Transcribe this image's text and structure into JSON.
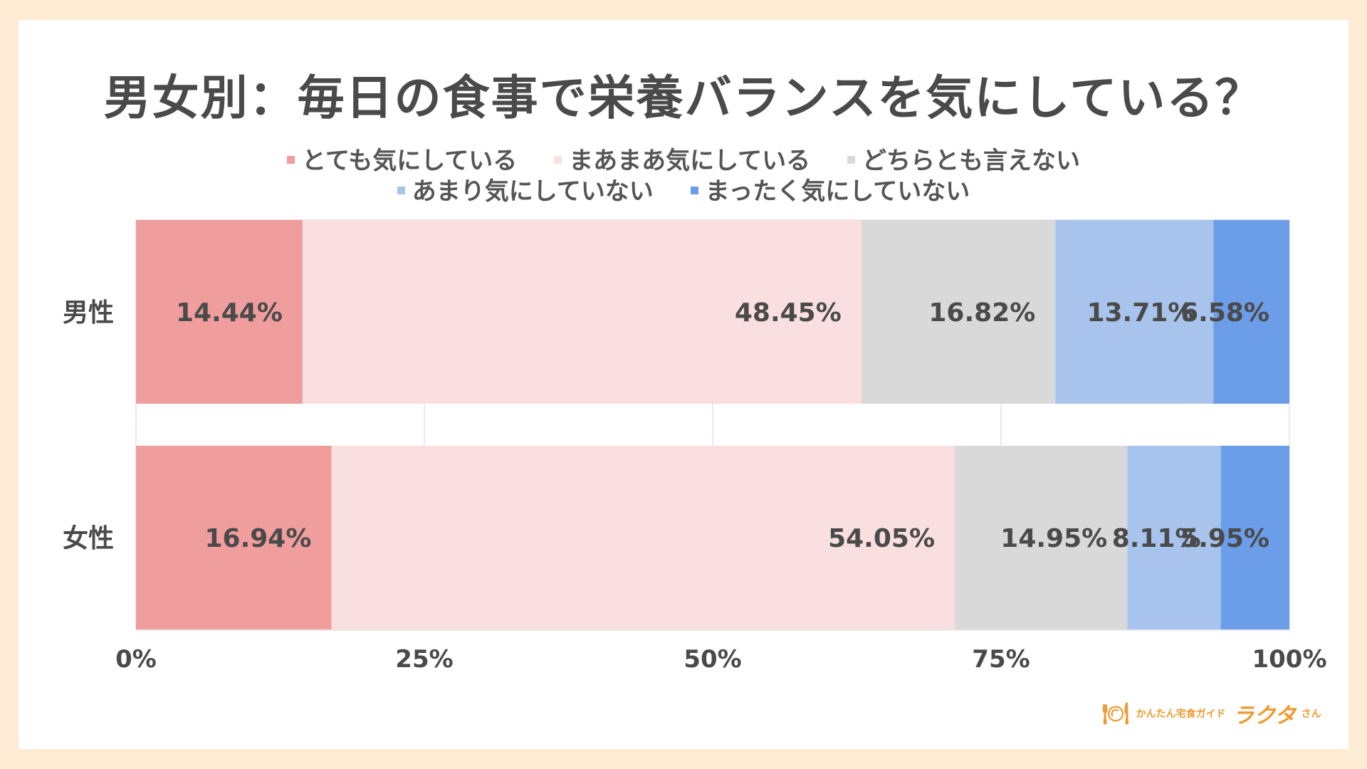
{
  "chart_data": {
    "type": "bar",
    "orientation": "horizontal",
    "stacked": true,
    "title": "男女別：毎日の食事で栄養バランスを気にしている？",
    "categories": [
      "男性",
      "女性"
    ],
    "series": [
      {
        "name": "とても気にしている",
        "color": "#f09d9d",
        "values": [
          14.44,
          16.94
        ],
        "labels": [
          "14.44%",
          "16.94%"
        ]
      },
      {
        "name": "まあまあ気にしている",
        "color": "#fadfe0",
        "values": [
          48.45,
          54.05
        ],
        "labels": [
          "48.45%",
          "54.05%"
        ]
      },
      {
        "name": "どちらとも言えない",
        "color": "#d9d9d9",
        "values": [
          16.82,
          14.95
        ],
        "labels": [
          "16.82%",
          "14.95%"
        ]
      },
      {
        "name": "あまり気にしていない",
        "color": "#a8c3ec",
        "values": [
          13.71,
          8.11
        ],
        "labels": [
          "13.71%",
          "8.11%"
        ]
      },
      {
        "name": "まったく気にしていない",
        "color": "#6b9de8",
        "values": [
          6.58,
          5.95
        ],
        "labels": [
          "6.58%",
          "5.95%"
        ]
      }
    ],
    "xlim": [
      0,
      100
    ],
    "xticks": [
      0,
      25,
      50,
      75,
      100
    ],
    "xtick_labels": [
      "0%",
      "25%",
      "50%",
      "75%",
      "100%"
    ],
    "grid": true,
    "legend_position": "top"
  },
  "logo": {
    "icon": "plate-cutlery-icon",
    "text": "かんたん宅食ガイド",
    "brand": "ラクタ",
    "suffix": "さん"
  }
}
